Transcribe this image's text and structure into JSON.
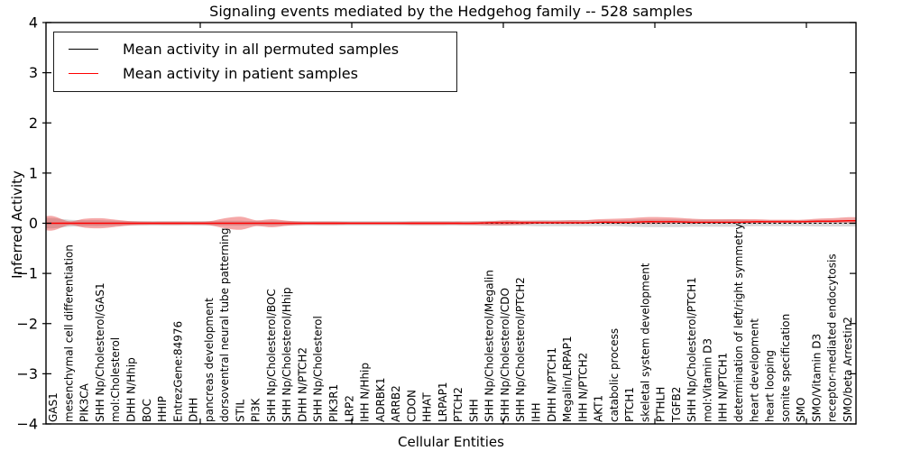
{
  "chart_data": {
    "type": "line",
    "title": "Signaling events mediated by the Hedgehog family -- 528 samples",
    "xlabel": "Cellular Entities",
    "ylabel": "Inferred Activity",
    "ylim": [
      -4,
      4
    ],
    "yticks": [
      -4,
      -3,
      -2,
      -1,
      0,
      1,
      2,
      3,
      4
    ],
    "grid": false,
    "legend_position": "upper left",
    "categories": [
      "GAS1",
      "mesenchymal cell differentiation",
      "PIK3CA",
      "SHH Np/Cholesterol/GAS1",
      "mol:Cholesterol",
      "DHH N/Hhip",
      "BOC",
      "HHIP",
      "EntrezGene:84976",
      "DHH",
      "pancreas development",
      "dorsoventral neural tube patterning",
      "STIL",
      "PI3K",
      "SHH Np/Cholesterol/BOC",
      "SHH Np/Cholesterol/Hhip",
      "DHH N/PTCH2",
      "SHH Np/Cholesterol",
      "PIK3R1",
      "LRP2",
      "IHH N/Hhip",
      "ADRBK1",
      "ARRB2",
      "CDON",
      "HHAT",
      "LRPAP1",
      "PTCH2",
      "SHH",
      "SHH Np/Cholesterol/Megalin",
      "SHH Np/Cholesterol/CDO",
      "SHH Np/Cholesterol/PTCH2",
      "IHH",
      "DHH N/PTCH1",
      "Megalin/LRPAP1",
      "IHH N/PTCH2",
      "AKT1",
      "catabolic process",
      "PTCH1",
      "skeletal system development",
      "PTHLH",
      "TGFB2",
      "SHH Np/Cholesterol/PTCH1",
      "mol:Vitamin D3",
      "IHH N/PTCH1",
      "determination of left/right symmetry",
      "heart development",
      "heart looping",
      "somite specification",
      "SMO",
      "SMO/Vitamin D3",
      "receptor-mediated endocytosis",
      "SMO/beta Arrestin2"
    ],
    "series": [
      {
        "name": "Mean activity in all permuted samples",
        "color": "#000000",
        "line_style": "dashed",
        "values": [
          0,
          0,
          0,
          0,
          0,
          0,
          0,
          0,
          0,
          0,
          0,
          0,
          0,
          0,
          0,
          0,
          0,
          0,
          0,
          0,
          0,
          0,
          0,
          0,
          0,
          0,
          0,
          0,
          0,
          0,
          0,
          0,
          0,
          0,
          0,
          0,
          0,
          0,
          0,
          0,
          0,
          0,
          0,
          0,
          0,
          0,
          0,
          0,
          0,
          0,
          0,
          0
        ]
      },
      {
        "name": "Mean activity in patient samples",
        "color": "#ff0000",
        "line_style": "solid",
        "values": [
          0,
          0,
          0,
          0,
          0,
          0,
          0,
          0,
          0,
          0,
          0,
          0,
          0,
          0,
          0,
          0,
          0,
          0,
          0,
          0,
          0,
          0,
          0,
          0,
          0,
          0,
          0,
          0,
          0.01,
          0.01,
          0.01,
          0.01,
          0.01,
          0.01,
          0.01,
          0.02,
          0.02,
          0.02,
          0.03,
          0.03,
          0.03,
          0.02,
          0.02,
          0.02,
          0.02,
          0.03,
          0.03,
          0.03,
          0.03,
          0.04,
          0.04,
          0.05
        ]
      }
    ],
    "bands": [
      {
        "name": "permuted-spread",
        "color": "#a8a8a8",
        "opacity": 0.45,
        "upper": [
          0.1,
          0.07,
          0.06,
          0.06,
          0.05,
          0.045,
          0.045,
          0.045,
          0.045,
          0.045,
          0.045,
          0.05,
          0.05,
          0.045,
          0.05,
          0.045,
          0.045,
          0.045,
          0.045,
          0.045,
          0.045,
          0.045,
          0.045,
          0.045,
          0.045,
          0.045,
          0.045,
          0.045,
          0.05,
          0.05,
          0.05,
          0.06,
          0.06,
          0.06,
          0.06,
          0.06,
          0.06,
          0.07,
          0.075,
          0.075,
          0.075,
          0.07,
          0.07,
          0.07,
          0.07,
          0.06,
          0.06,
          0.06,
          0.06,
          0.065,
          0.065,
          0.065
        ],
        "lower": [
          -0.1,
          -0.07,
          -0.06,
          -0.06,
          -0.05,
          -0.045,
          -0.045,
          -0.045,
          -0.045,
          -0.045,
          -0.045,
          -0.05,
          -0.05,
          -0.045,
          -0.05,
          -0.045,
          -0.045,
          -0.045,
          -0.045,
          -0.045,
          -0.045,
          -0.045,
          -0.045,
          -0.045,
          -0.045,
          -0.045,
          -0.045,
          -0.045,
          -0.05,
          -0.05,
          -0.05,
          -0.06,
          -0.06,
          -0.06,
          -0.06,
          -0.06,
          -0.06,
          -0.07,
          -0.075,
          -0.075,
          -0.075,
          -0.07,
          -0.07,
          -0.07,
          -0.07,
          -0.06,
          -0.06,
          -0.06,
          -0.06,
          -0.065,
          -0.065,
          -0.065
        ]
      },
      {
        "name": "patient-spread",
        "color": "#e83030",
        "opacity": 0.42,
        "upper": [
          0.14,
          0.04,
          0.09,
          0.1,
          0.07,
          0.04,
          0.03,
          0.03,
          0.03,
          0.03,
          0.04,
          0.1,
          0.13,
          0.06,
          0.08,
          0.05,
          0.03,
          0.03,
          0.03,
          0.025,
          0.025,
          0.025,
          0.025,
          0.03,
          0.03,
          0.03,
          0.03,
          0.035,
          0.04,
          0.06,
          0.05,
          0.05,
          0.05,
          0.06,
          0.06,
          0.08,
          0.09,
          0.1,
          0.12,
          0.12,
          0.11,
          0.09,
          0.08,
          0.08,
          0.08,
          0.08,
          0.07,
          0.07,
          0.07,
          0.09,
          0.1,
          0.12
        ],
        "lower": [
          -0.14,
          -0.04,
          -0.09,
          -0.1,
          -0.07,
          -0.04,
          -0.03,
          -0.03,
          -0.03,
          -0.03,
          -0.04,
          -0.1,
          -0.13,
          -0.06,
          -0.08,
          -0.05,
          -0.03,
          -0.03,
          -0.03,
          -0.025,
          -0.025,
          -0.025,
          -0.025,
          -0.03,
          -0.03,
          -0.03,
          -0.03,
          -0.035,
          -0.04,
          -0.04,
          -0.03,
          -0.01,
          -0.01,
          -0.01,
          -0.01,
          0.0,
          -0.01,
          -0.01,
          -0.01,
          -0.01,
          0.0,
          -0.01,
          0.0,
          0.0,
          0.0,
          0.0,
          0.01,
          0.01,
          0.01,
          0.01,
          0.01,
          0.01
        ]
      }
    ]
  },
  "colors": {
    "permuted_line": "#000000",
    "patient_line": "#ff0000",
    "frame": "#000000",
    "background": "#ffffff"
  }
}
